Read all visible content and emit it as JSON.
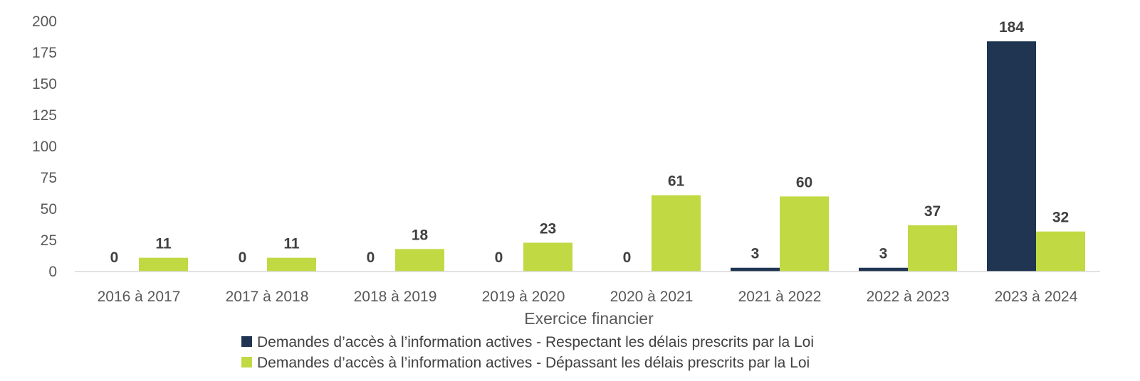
{
  "chart_data": {
    "type": "bar",
    "title": "",
    "xlabel": "Exercice financier",
    "ylabel": "",
    "ylim": [
      0,
      200
    ],
    "yticks": [
      0,
      25,
      50,
      75,
      100,
      125,
      150,
      175,
      200
    ],
    "grid": false,
    "legend_position": "bottom",
    "categories": [
      "2016 à 2017",
      "2017 à 2018",
      "2018 à 2019",
      "2019 à 2020",
      "2020 à 2021",
      "2021 à 2022",
      "2022 à 2023",
      "2023 à 2024"
    ],
    "series": [
      {
        "name": "Demandes d’accès à l’information actives - Respectant les délais prescrits par la Loi",
        "color": "#1f3552",
        "values": [
          0,
          0,
          0,
          0,
          0,
          3,
          3,
          184
        ]
      },
      {
        "name": "Demandes d’accès à l’information actives - Dépassant les délais prescrits par la Loi",
        "color": "#c1d942",
        "values": [
          11,
          11,
          18,
          23,
          61,
          60,
          37,
          32
        ]
      }
    ]
  }
}
